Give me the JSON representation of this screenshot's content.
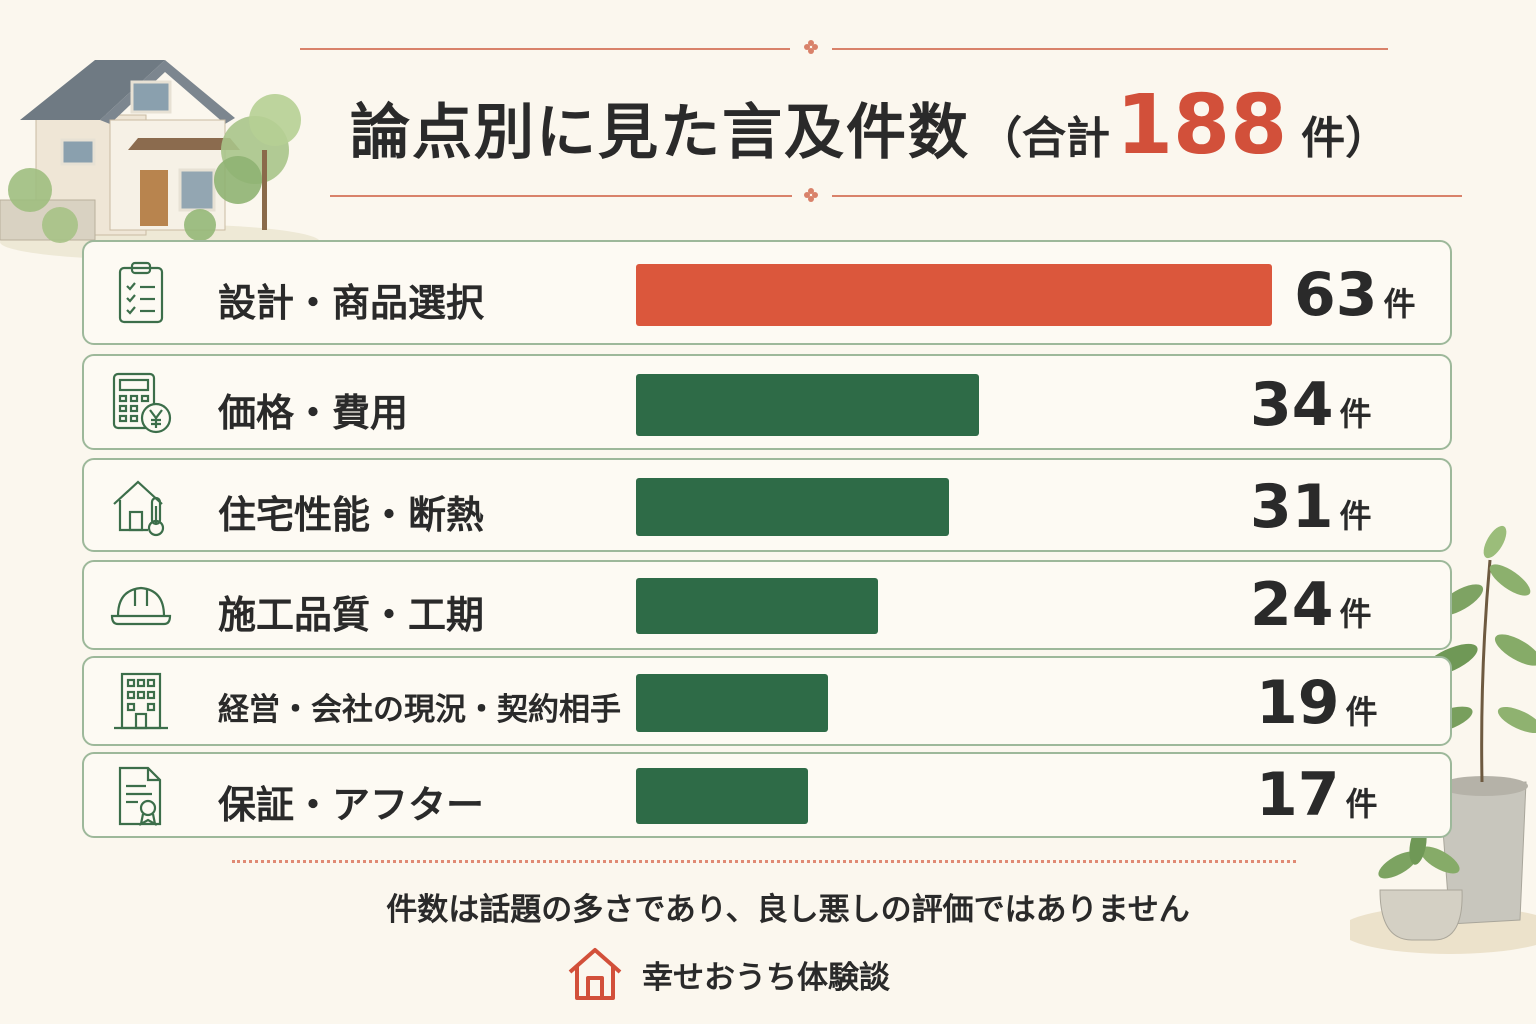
{
  "title": {
    "main": "論点別に見た言及件数",
    "paren_open": "（合計",
    "total": "188",
    "unit_close": "件）"
  },
  "colors": {
    "accent": "#d2503a",
    "bar_top": "#db573c",
    "bar_rest": "#2e6b47",
    "outline": "#9db89a",
    "icon": "#3c6e4a",
    "background": "#fbf7ee"
  },
  "rows": [
    {
      "label": "設計・商品選択",
      "count": "63",
      "unit": "件",
      "icon": "clipboard-checklist-icon"
    },
    {
      "label": "価格・費用",
      "count": "34",
      "unit": "件",
      "icon": "calculator-yen-icon"
    },
    {
      "label": "住宅性能・断熱",
      "count": "31",
      "unit": "件",
      "icon": "house-thermometer-icon"
    },
    {
      "label": "施工品質・工期",
      "count": "24",
      "unit": "件",
      "icon": "hard-hat-icon"
    },
    {
      "label": "経営・会社の現況・契約相手",
      "count": "19",
      "unit": "件",
      "icon": "office-building-icon"
    },
    {
      "label": "保証・アフター",
      "count": "17",
      "unit": "件",
      "icon": "certificate-document-icon"
    }
  ],
  "chart_data": {
    "type": "bar",
    "orientation": "horizontal",
    "title": "論点別に見た言及件数（合計188件）",
    "categories": [
      "設計・商品選択",
      "価格・費用",
      "住宅性能・断熱",
      "施工品質・工期",
      "経営・会社の現況・契約相手",
      "保証・アフター"
    ],
    "values": [
      63,
      34,
      31,
      24,
      19,
      17
    ],
    "unit": "件",
    "total": 188,
    "xlim": [
      0,
      63
    ],
    "highlight_index": 0
  },
  "footer": {
    "note": "件数は話題の多さであり、良し悪しの評価ではありません",
    "brand": "幸せおうち体験談",
    "brand_icon": "house-icon"
  }
}
